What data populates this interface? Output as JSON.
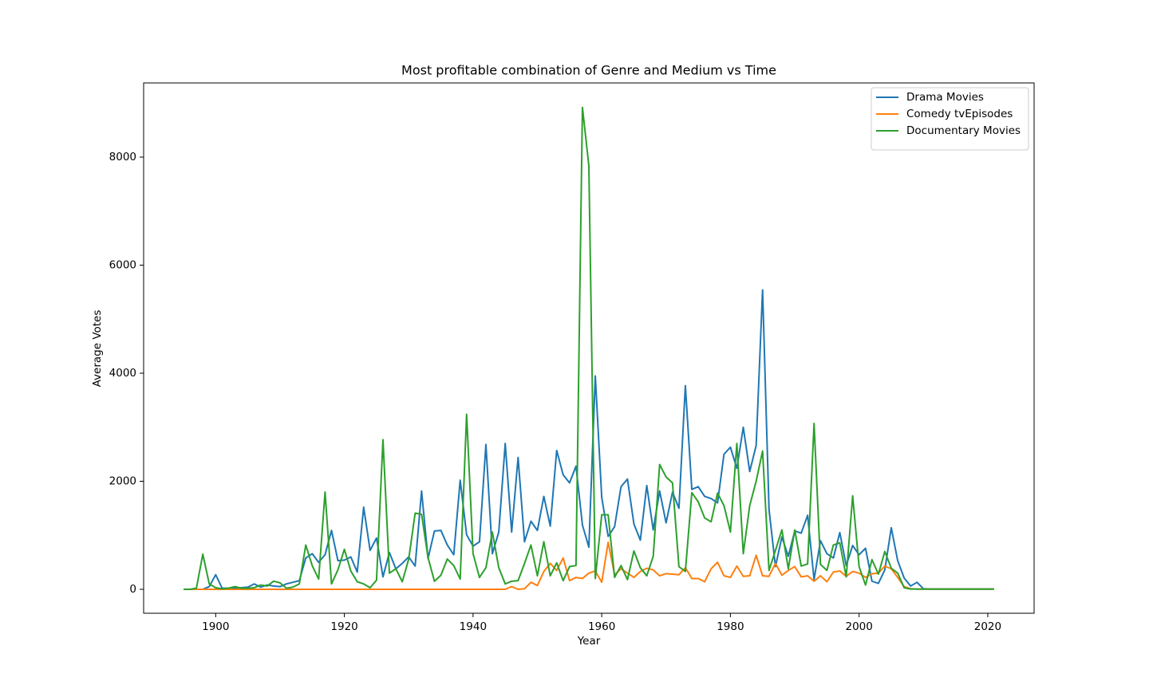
{
  "chart_data": {
    "type": "line",
    "title": "Most profitable combination of Genre and Medium vs Time",
    "x_label": "Year",
    "y_label": "Average Votes",
    "x": [
      1895,
      1896,
      1897,
      1898,
      1899,
      1900,
      1901,
      1902,
      1903,
      1904,
      1905,
      1906,
      1907,
      1908,
      1909,
      1910,
      1911,
      1912,
      1913,
      1914,
      1915,
      1916,
      1917,
      1918,
      1919,
      1920,
      1921,
      1922,
      1923,
      1924,
      1925,
      1926,
      1927,
      1928,
      1929,
      1930,
      1931,
      1932,
      1933,
      1934,
      1935,
      1936,
      1937,
      1938,
      1939,
      1940,
      1941,
      1942,
      1943,
      1944,
      1945,
      1946,
      1947,
      1948,
      1949,
      1950,
      1951,
      1952,
      1953,
      1954,
      1955,
      1956,
      1957,
      1958,
      1959,
      1960,
      1961,
      1962,
      1963,
      1964,
      1965,
      1966,
      1967,
      1968,
      1969,
      1970,
      1971,
      1972,
      1973,
      1974,
      1975,
      1976,
      1977,
      1978,
      1979,
      1980,
      1981,
      1982,
      1983,
      1984,
      1985,
      1986,
      1987,
      1988,
      1989,
      1990,
      1991,
      1992,
      1993,
      1994,
      1995,
      1996,
      1997,
      1998,
      1999,
      2000,
      2001,
      2002,
      2003,
      2004,
      2005,
      2006,
      2007,
      2008,
      2009,
      2010,
      2011,
      2012,
      2013,
      2014,
      2015,
      2016,
      2017,
      2018,
      2019,
      2020,
      2021
    ],
    "series": [
      {
        "name": "Drama Movies",
        "color": "#1f77b4",
        "values": [
          0,
          0,
          0,
          0,
          50,
          270,
          20,
          20,
          30,
          30,
          40,
          100,
          40,
          80,
          60,
          50,
          100,
          130,
          160,
          580,
          660,
          500,
          640,
          1090,
          530,
          540,
          600,
          320,
          1520,
          720,
          950,
          230,
          680,
          380,
          480,
          600,
          430,
          1820,
          570,
          1080,
          1090,
          820,
          640,
          2020,
          1010,
          800,
          880,
          2680,
          660,
          1060,
          2700,
          1060,
          2440,
          880,
          1260,
          1090,
          1720,
          1170,
          2570,
          2120,
          1970,
          2280,
          1190,
          780,
          3950,
          1700,
          980,
          1160,
          1900,
          2040,
          1210,
          910,
          1920,
          1100,
          1820,
          1230,
          1800,
          1500,
          3770,
          1850,
          1900,
          1720,
          1680,
          1600,
          2500,
          2630,
          2240,
          3000,
          2180,
          2660,
          5540,
          1480,
          420,
          970,
          610,
          1080,
          1040,
          1370,
          180,
          900,
          660,
          580,
          1050,
          440,
          810,
          640,
          760,
          150,
          110,
          360,
          1140,
          530,
          210,
          60,
          130,
          10,
          5,
          5,
          5,
          5,
          5,
          5,
          5,
          5,
          5,
          5,
          5
        ]
      },
      {
        "name": "Comedy tvEpisodes",
        "color": "#ff7f0e",
        "values": [
          0,
          0,
          0,
          0,
          0,
          0,
          0,
          0,
          0,
          0,
          0,
          0,
          0,
          0,
          0,
          0,
          0,
          0,
          0,
          0,
          0,
          0,
          0,
          0,
          0,
          0,
          0,
          0,
          0,
          0,
          0,
          0,
          0,
          0,
          0,
          0,
          0,
          0,
          0,
          0,
          0,
          0,
          0,
          0,
          0,
          0,
          0,
          0,
          0,
          0,
          0,
          50,
          0,
          10,
          130,
          70,
          330,
          480,
          350,
          580,
          160,
          220,
          200,
          300,
          340,
          130,
          870,
          270,
          380,
          300,
          220,
          330,
          390,
          360,
          250,
          290,
          280,
          270,
          400,
          200,
          200,
          140,
          380,
          500,
          250,
          220,
          430,
          240,
          250,
          630,
          250,
          240,
          480,
          260,
          350,
          420,
          230,
          250,
          150,
          250,
          140,
          320,
          340,
          240,
          330,
          300,
          220,
          290,
          300,
          430,
          380,
          220,
          50,
          10,
          5,
          3,
          3,
          3,
          3,
          3,
          3,
          3,
          3,
          3,
          3,
          3,
          3
        ]
      },
      {
        "name": "Documentary Movies",
        "color": "#2ca02c",
        "values": [
          0,
          0,
          20,
          650,
          100,
          30,
          10,
          20,
          50,
          20,
          20,
          30,
          80,
          60,
          150,
          120,
          20,
          40,
          100,
          820,
          440,
          190,
          1800,
          100,
          360,
          740,
          340,
          140,
          100,
          30,
          170,
          2770,
          300,
          380,
          140,
          560,
          1410,
          1390,
          590,
          150,
          260,
          560,
          440,
          190,
          3240,
          660,
          220,
          400,
          1060,
          400,
          100,
          150,
          160,
          480,
          820,
          250,
          880,
          250,
          490,
          160,
          420,
          440,
          8920,
          7840,
          200,
          1380,
          1380,
          220,
          440,
          180,
          710,
          400,
          250,
          610,
          2310,
          2080,
          1970,
          420,
          330,
          1790,
          1620,
          1320,
          1250,
          1780,
          1550,
          1060,
          2700,
          660,
          1550,
          2000,
          2560,
          350,
          720,
          1100,
          380,
          1100,
          430,
          470,
          3070,
          460,
          350,
          820,
          860,
          230,
          1730,
          420,
          80,
          550,
          280,
          700,
          390,
          300,
          30,
          5,
          3,
          3,
          3,
          3,
          3,
          3,
          3,
          3,
          3,
          3,
          3,
          3,
          3
        ]
      }
    ],
    "xlim": [
      1888.8,
      2027.2
    ],
    "ylim": [
      -443,
      9373
    ],
    "xticks": [
      1900,
      1920,
      1940,
      1960,
      1980,
      2000,
      2020
    ],
    "yticks": [
      0,
      2000,
      4000,
      6000,
      8000
    ],
    "legend": "upper right",
    "grid": false
  }
}
